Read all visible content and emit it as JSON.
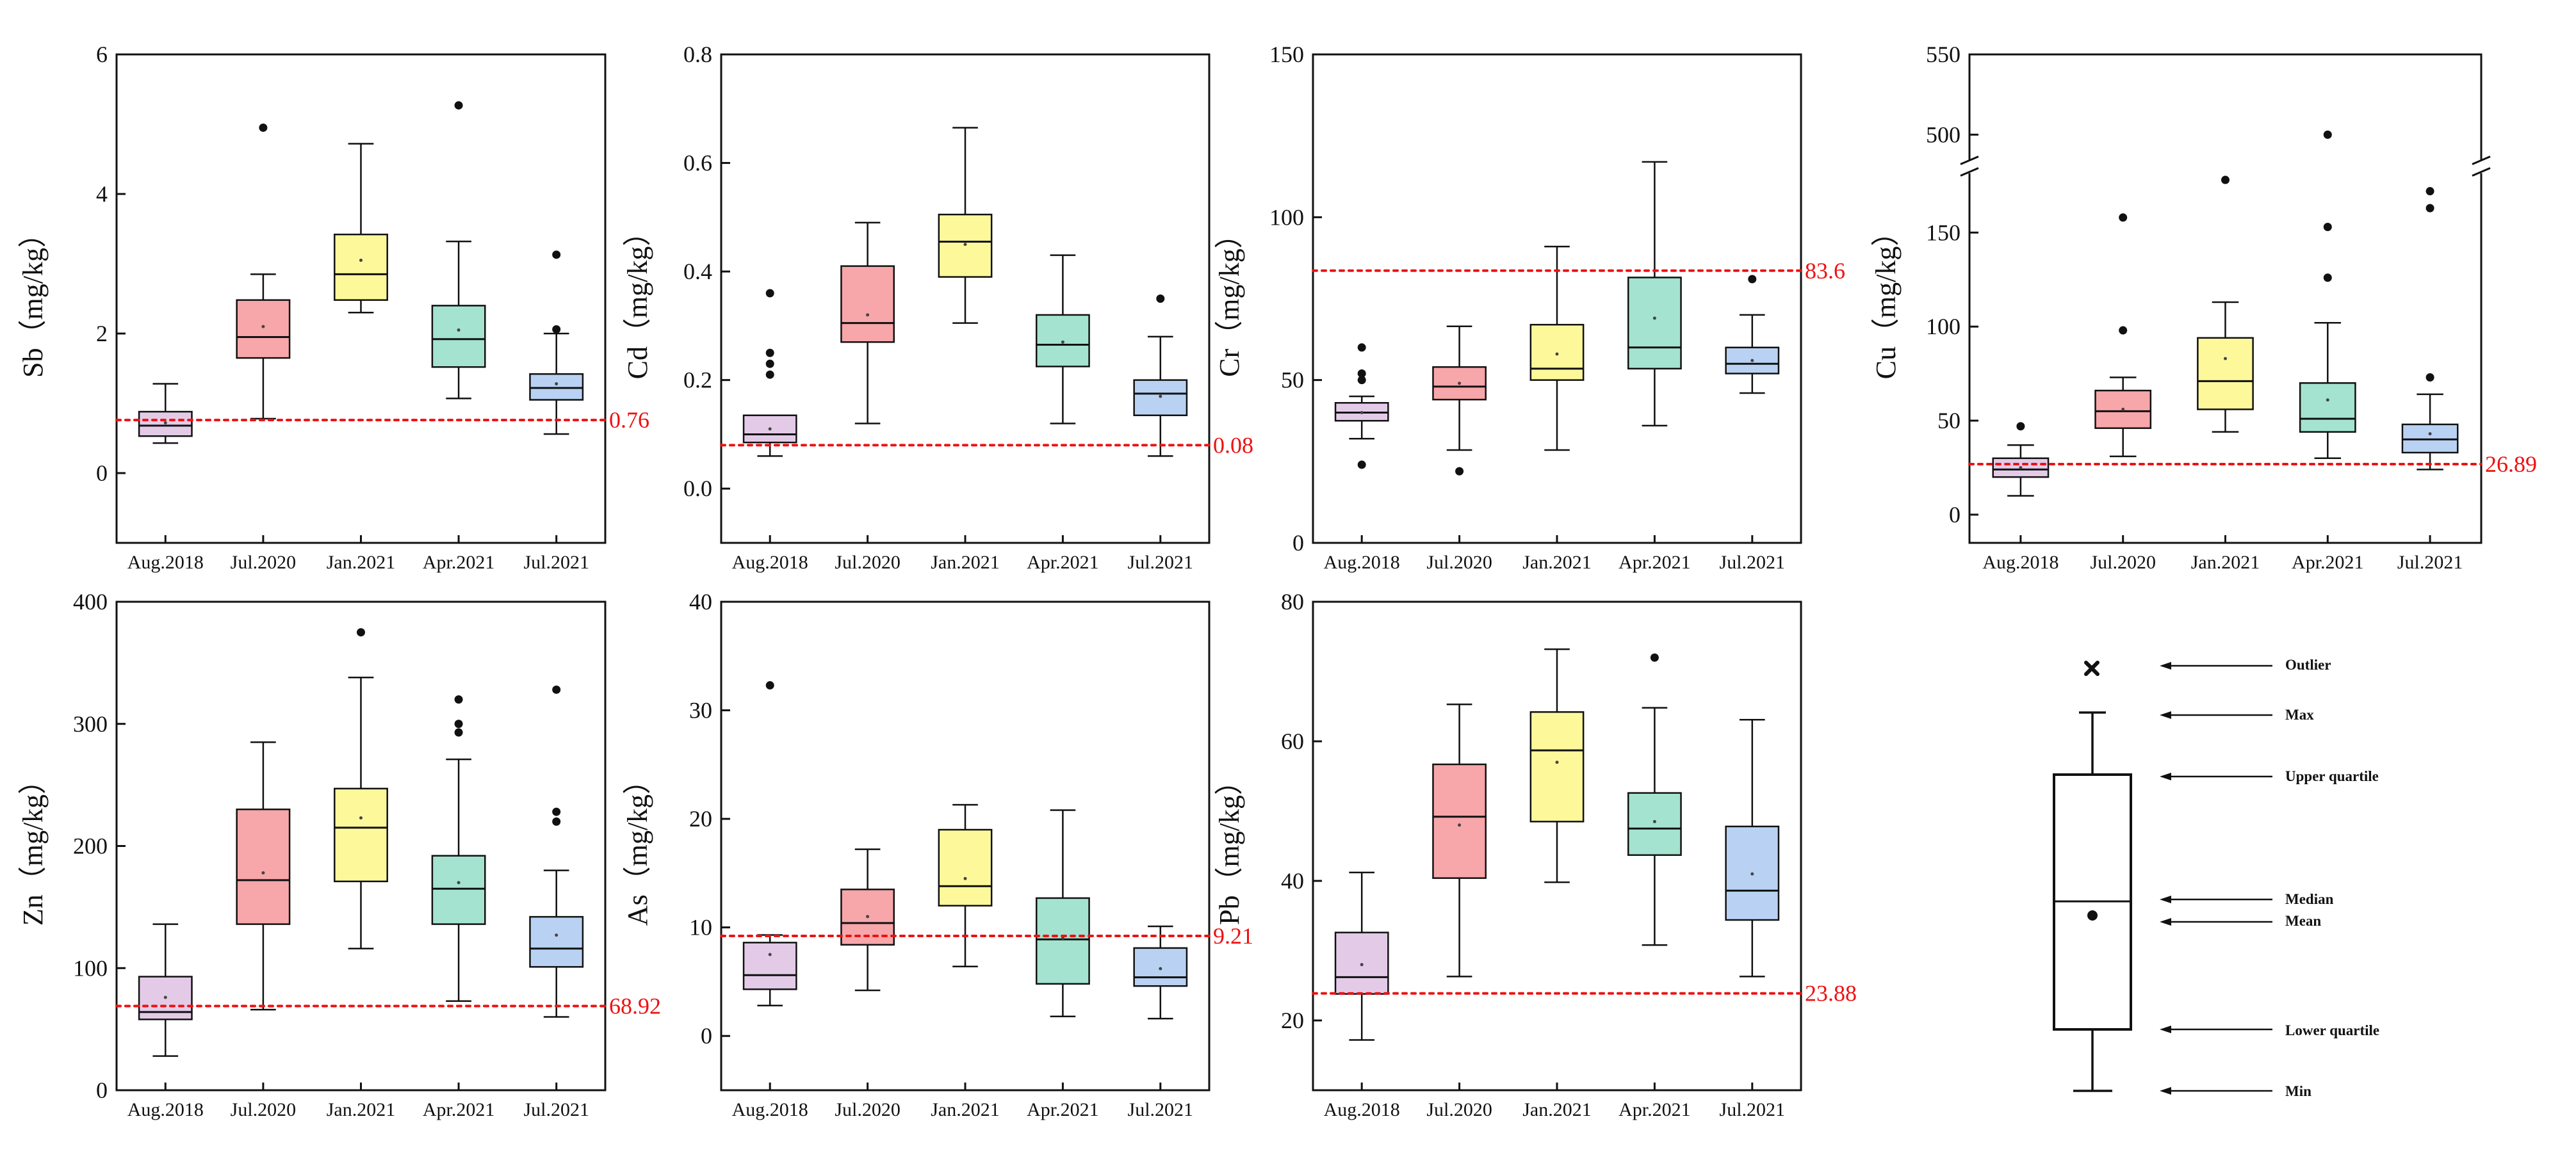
{
  "colors": {
    "box_fills": [
      "#e3cbe8",
      "#f7a6aa",
      "#fdf99b",
      "#a4e3cf",
      "#b9d2f3"
    ],
    "threshold": "#ee1111",
    "ink": "#111111"
  },
  "legend": {
    "labels": {
      "outlier": "Outlier",
      "max": "Max",
      "upper": "Upper quartile",
      "median": "Median",
      "mean": "Mean",
      "lower": "Lower quartile",
      "min": "Min"
    }
  },
  "chart_data": [
    {
      "type": "box",
      "element": "Sb",
      "ylabel": "Sb（mg/kg）",
      "ylim": [
        -1,
        6
      ],
      "yticks": [
        0,
        2,
        4,
        6
      ],
      "categories": [
        "Aug.2018",
        "Jul.2020",
        "Jan.2021",
        "Apr.2021",
        "Jul.2021"
      ],
      "threshold": 0.76,
      "threshold_label": "0.76",
      "boxes": [
        {
          "min": 0.43,
          "q1": 0.53,
          "median": 0.68,
          "q3": 0.88,
          "max": 1.28,
          "mean": 0.72,
          "outliers": []
        },
        {
          "min": 0.78,
          "q1": 1.65,
          "median": 1.95,
          "q3": 2.48,
          "max": 2.85,
          "mean": 2.1,
          "outliers": [
            4.95
          ]
        },
        {
          "min": 2.3,
          "q1": 2.48,
          "median": 2.85,
          "q3": 3.42,
          "max": 4.72,
          "mean": 3.05,
          "outliers": []
        },
        {
          "min": 1.07,
          "q1": 1.52,
          "median": 1.92,
          "q3": 2.4,
          "max": 3.32,
          "mean": 2.05,
          "outliers": [
            5.27
          ]
        },
        {
          "min": 0.56,
          "q1": 1.05,
          "median": 1.22,
          "q3": 1.42,
          "max": 2.0,
          "mean": 1.28,
          "outliers": [
            2.06,
            3.13
          ]
        }
      ]
    },
    {
      "type": "box",
      "element": "Cd",
      "ylabel": "Cd（mg/kg）",
      "ylim": [
        -0.1,
        0.8
      ],
      "yticks": [
        0.0,
        0.2,
        0.4,
        0.6,
        0.8
      ],
      "ytick_labels": [
        "0.0",
        "0.2",
        "0.4",
        "0.6",
        "0.8"
      ],
      "categories": [
        "Aug.2018",
        "Jul.2020",
        "Jan.2021",
        "Apr.2021",
        "Jul.2021"
      ],
      "threshold": 0.08,
      "threshold_label": "0.08",
      "boxes": [
        {
          "min": 0.06,
          "q1": 0.085,
          "median": 0.1,
          "q3": 0.135,
          "max": 0.135,
          "mean": 0.11,
          "outliers": [
            0.21,
            0.23,
            0.25,
            0.36
          ]
        },
        {
          "min": 0.12,
          "q1": 0.27,
          "median": 0.305,
          "q3": 0.41,
          "max": 0.49,
          "mean": 0.32,
          "outliers": []
        },
        {
          "min": 0.305,
          "q1": 0.39,
          "median": 0.455,
          "q3": 0.505,
          "max": 0.665,
          "mean": 0.45,
          "outliers": []
        },
        {
          "min": 0.12,
          "q1": 0.225,
          "median": 0.265,
          "q3": 0.32,
          "max": 0.43,
          "mean": 0.27,
          "outliers": []
        },
        {
          "min": 0.06,
          "q1": 0.135,
          "median": 0.175,
          "q3": 0.2,
          "max": 0.28,
          "mean": 0.17,
          "outliers": [
            0.35
          ]
        }
      ]
    },
    {
      "type": "box",
      "element": "Cr",
      "ylabel": "Cr（mg/kg）",
      "ylim": [
        0,
        150
      ],
      "yticks": [
        0,
        50,
        100,
        150
      ],
      "categories": [
        "Aug.2018",
        "Jul.2020",
        "Jan.2021",
        "Apr.2021",
        "Jul.2021"
      ],
      "threshold": 83.6,
      "threshold_label": "83.6",
      "boxes": [
        {
          "min": 32,
          "q1": 37.5,
          "median": 40,
          "q3": 43,
          "max": 45,
          "mean": 40,
          "outliers": [
            24,
            50,
            52,
            60
          ]
        },
        {
          "min": 28.5,
          "q1": 44,
          "median": 48,
          "q3": 54,
          "max": 66.5,
          "mean": 49,
          "outliers": [
            22
          ]
        },
        {
          "min": 28.5,
          "q1": 50,
          "median": 53.5,
          "q3": 67,
          "max": 91,
          "mean": 58,
          "outliers": []
        },
        {
          "min": 36,
          "q1": 53.5,
          "median": 60,
          "q3": 81.5,
          "max": 117,
          "mean": 69,
          "outliers": []
        },
        {
          "min": 46,
          "q1": 52,
          "median": 55,
          "q3": 60,
          "max": 70,
          "mean": 56,
          "outliers": [
            81
          ]
        }
      ]
    },
    {
      "type": "box",
      "element": "Cu",
      "ylabel": "Cu（mg/kg）",
      "ylim": [
        -15,
        550
      ],
      "axis_break": {
        "from": 185,
        "to": 480
      },
      "yticks": [
        0,
        50,
        100,
        150,
        500,
        550
      ],
      "categories": [
        "Aug.2018",
        "Jul.2020",
        "Jan.2021",
        "Apr.2021",
        "Jul.2021"
      ],
      "threshold": 26.89,
      "threshold_label": "26.89",
      "boxes": [
        {
          "min": 10,
          "q1": 20,
          "median": 24,
          "q3": 30,
          "max": 37,
          "mean": 25,
          "outliers": [
            47
          ]
        },
        {
          "min": 31,
          "q1": 46,
          "median": 55,
          "q3": 66,
          "max": 73,
          "mean": 56,
          "outliers": [
            98,
            158
          ]
        },
        {
          "min": 44,
          "q1": 56,
          "median": 71,
          "q3": 94,
          "max": 113,
          "mean": 83,
          "outliers": [
            178
          ]
        },
        {
          "min": 30,
          "q1": 44,
          "median": 51,
          "q3": 70,
          "max": 102,
          "mean": 61,
          "outliers": [
            126,
            153,
            500
          ]
        },
        {
          "min": 24,
          "q1": 33,
          "median": 40,
          "q3": 48,
          "max": 64,
          "mean": 43,
          "outliers": [
            73,
            163,
            172
          ]
        }
      ]
    },
    {
      "type": "box",
      "element": "Zn",
      "ylabel": "Zn（mg/kg）",
      "ylim": [
        0,
        400
      ],
      "yticks": [
        0,
        100,
        200,
        300,
        400
      ],
      "categories": [
        "Aug.2018",
        "Jul.2020",
        "Jan.2021",
        "Apr.2021",
        "Jul.2021"
      ],
      "threshold": 68.92,
      "threshold_label": "68.92",
      "boxes": [
        {
          "min": 28,
          "q1": 58,
          "median": 64,
          "q3": 93,
          "max": 136,
          "mean": 76,
          "outliers": []
        },
        {
          "min": 66,
          "q1": 136,
          "median": 172,
          "q3": 230,
          "max": 285,
          "mean": 178,
          "outliers": []
        },
        {
          "min": 116,
          "q1": 171,
          "median": 215,
          "q3": 247,
          "max": 338,
          "mean": 223,
          "outliers": [
            375
          ]
        },
        {
          "min": 73,
          "q1": 136,
          "median": 165,
          "q3": 192,
          "max": 271,
          "mean": 170,
          "outliers": [
            293,
            300,
            320
          ]
        },
        {
          "min": 60,
          "q1": 101,
          "median": 116,
          "q3": 142,
          "max": 180,
          "mean": 127,
          "outliers": [
            220,
            228,
            328
          ]
        }
      ]
    },
    {
      "type": "box",
      "element": "As",
      "ylabel": "As（mg/kg）",
      "ylim": [
        -5,
        40
      ],
      "yticks": [
        0,
        10,
        20,
        30,
        40
      ],
      "categories": [
        "Aug.2018",
        "Jul.2020",
        "Jan.2021",
        "Apr.2021",
        "Jul.2021"
      ],
      "threshold": 9.21,
      "threshold_label": "9.21",
      "boxes": [
        {
          "min": 2.8,
          "q1": 4.3,
          "median": 5.6,
          "q3": 8.6,
          "max": 9.3,
          "mean": 7.5,
          "outliers": [
            32.3
          ]
        },
        {
          "min": 4.2,
          "q1": 8.4,
          "median": 10.4,
          "q3": 13.5,
          "max": 17.2,
          "mean": 11,
          "outliers": []
        },
        {
          "min": 6.4,
          "q1": 12,
          "median": 13.8,
          "q3": 19,
          "max": 21.3,
          "mean": 14.5,
          "outliers": []
        },
        {
          "min": 1.8,
          "q1": 4.8,
          "median": 8.9,
          "q3": 12.7,
          "max": 20.8,
          "mean": 9,
          "outliers": []
        },
        {
          "min": 1.6,
          "q1": 4.6,
          "median": 5.4,
          "q3": 8.1,
          "max": 10.1,
          "mean": 6.2,
          "outliers": []
        }
      ]
    },
    {
      "type": "box",
      "element": "Pb",
      "ylabel": "Pb（mg/kg）",
      "ylim": [
        10,
        80
      ],
      "yticks": [
        20,
        40,
        60,
        80
      ],
      "categories": [
        "Aug.2018",
        "Jul.2020",
        "Jan.2021",
        "Apr.2021",
        "Jul.2021"
      ],
      "threshold": 23.88,
      "threshold_label": "23.88",
      "boxes": [
        {
          "min": 17.2,
          "q1": 23.8,
          "median": 26.2,
          "q3": 32.6,
          "max": 41.2,
          "mean": 28,
          "outliers": []
        },
        {
          "min": 26.3,
          "q1": 40.4,
          "median": 49.2,
          "q3": 56.7,
          "max": 65.3,
          "mean": 48,
          "outliers": []
        },
        {
          "min": 39.8,
          "q1": 48.5,
          "median": 58.7,
          "q3": 64.2,
          "max": 73.2,
          "mean": 57,
          "outliers": []
        },
        {
          "min": 30.8,
          "q1": 43.7,
          "median": 47.5,
          "q3": 52.6,
          "max": 64.8,
          "mean": 48.5,
          "outliers": [
            72
          ]
        },
        {
          "min": 26.3,
          "q1": 34.4,
          "median": 38.6,
          "q3": 47.8,
          "max": 63.1,
          "mean": 41,
          "outliers": []
        }
      ]
    }
  ]
}
